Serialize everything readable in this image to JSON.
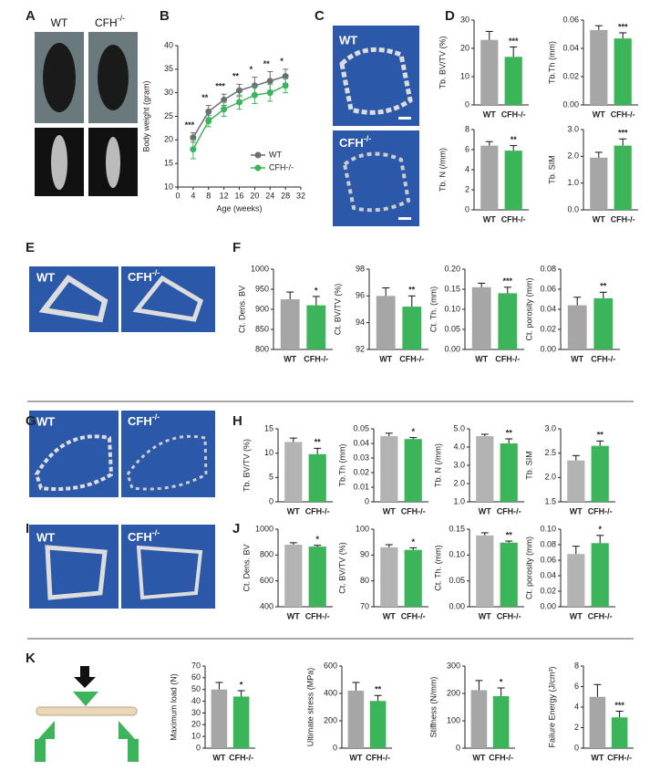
{
  "panels": {
    "letters": [
      "A",
      "B",
      "C",
      "D",
      "E",
      "F",
      "G",
      "H",
      "I",
      "J",
      "K"
    ],
    "wt": "WT",
    "cfh": "CFH",
    "sup": "-/-"
  },
  "chart_data": [
    {
      "type": "line",
      "xlabel": "Age (weeks)",
      "ylabel": "Body weight (gram)",
      "x": [
        4,
        8,
        12,
        16,
        20,
        24,
        28
      ],
      "xlim": [
        0,
        32
      ],
      "xticks": [
        0,
        4,
        8,
        12,
        16,
        20,
        24,
        28,
        32
      ],
      "ylim": [
        10,
        40
      ],
      "yticks": [
        10,
        15,
        20,
        25,
        30,
        35,
        40
      ],
      "legend": "lower right",
      "series": [
        {
          "name": "WT",
          "color": "#6d6e70",
          "values": [
            20.5,
            26,
            28.5,
            30.5,
            31.5,
            32.5,
            33.5
          ],
          "errors": [
            1,
            1.3,
            1.2,
            1.3,
            1.8,
            2,
            1.5
          ]
        },
        {
          "name": "CFH-/-",
          "color": "#3cb55a",
          "values": [
            18,
            24,
            26.5,
            28,
            29.5,
            30,
            31.5
          ],
          "errors": [
            2,
            1.2,
            1.5,
            1.5,
            1.8,
            1.8,
            1.5
          ]
        }
      ],
      "annotations": [
        "***",
        "**",
        "***",
        "**",
        "*",
        "**",
        "*"
      ]
    },
    {
      "type": "bar",
      "ylabel": "Tb. BV/TV (%)",
      "categories": [
        "WT",
        "CFH-/-"
      ],
      "colors": [
        "#a6a6a6",
        "#3cb55a"
      ],
      "values": [
        23,
        17
      ],
      "errors": [
        3,
        3.5
      ],
      "ylim": [
        0,
        30
      ],
      "yticks": [
        0,
        10,
        20,
        30
      ],
      "annotation": "***"
    },
    {
      "type": "bar",
      "ylabel": "Tb.Th (mm)",
      "categories": [
        "WT",
        "CFH-/-"
      ],
      "colors": [
        "#a6a6a6",
        "#3cb55a"
      ],
      "values": [
        0.053,
        0.047
      ],
      "errors": [
        0.003,
        0.004
      ],
      "ylim": [
        0,
        0.06
      ],
      "yticks": [
        {
          "value": 0,
          "label": "0.00"
        },
        0.02,
        0.04,
        0.06
      ],
      "annotation": "***"
    },
    {
      "type": "bar",
      "ylabel": "Tb. N (/mm)",
      "categories": [
        "WT",
        "CFH-/-"
      ],
      "colors": [
        "#a6a6a6",
        "#3cb55a"
      ],
      "values": [
        6.4,
        5.9
      ],
      "errors": [
        0.4,
        0.5
      ],
      "ylim": [
        0,
        8
      ],
      "yticks": [
        0,
        2,
        4,
        6,
        8
      ],
      "annotation": "**"
    },
    {
      "type": "bar",
      "ylabel": "Tb. SIM",
      "categories": [
        "WT",
        "CFH-/-"
      ],
      "colors": [
        "#a6a6a6",
        "#3cb55a"
      ],
      "values": [
        1.95,
        2.4
      ],
      "errors": [
        0.2,
        0.25
      ],
      "ylim": [
        0,
        3
      ],
      "yticks": [
        {
          "value": 0,
          "label": "0.0"
        },
        {
          "value": 1,
          "label": "1.0"
        },
        {
          "value": 2,
          "label": "2.0"
        },
        {
          "value": 3,
          "label": "3.0"
        }
      ],
      "annotation": "***"
    },
    {
      "type": "bar",
      "ylabel": "Ct. Dens. BV",
      "categories": [
        "WT",
        "CFH-/-"
      ],
      "colors": [
        "#a6a6a6",
        "#3cb55a"
      ],
      "values": [
        925,
        910
      ],
      "errors": [
        18,
        22
      ],
      "ylim": [
        800,
        1000
      ],
      "yticks": [
        800,
        850,
        900,
        950,
        1000
      ],
      "annotation": "*"
    },
    {
      "type": "bar",
      "ylabel": "Ct. BV/TV (%)",
      "categories": [
        "WT",
        "CFH-/-"
      ],
      "colors": [
        "#a6a6a6",
        "#3cb55a"
      ],
      "values": [
        96,
        95.2
      ],
      "errors": [
        0.6,
        0.8
      ],
      "ylim": [
        92,
        98
      ],
      "yticks": [
        92,
        94,
        96,
        98
      ],
      "annotation": "**"
    },
    {
      "type": "bar",
      "ylabel": "Ct. Th. (mm)",
      "categories": [
        "WT",
        "CFH-/-"
      ],
      "colors": [
        "#a6a6a6",
        "#3cb55a"
      ],
      "values": [
        0.155,
        0.14
      ],
      "errors": [
        0.01,
        0.015
      ],
      "ylim": [
        0,
        0.2
      ],
      "yticks": [
        {
          "value": 0,
          "label": "0.00"
        },
        0.05,
        {
          "value": 0.1,
          "label": "0.10"
        },
        0.15,
        {
          "value": 0.2,
          "label": "0.20"
        }
      ],
      "annotation": "***"
    },
    {
      "type": "bar",
      "ylabel": "Ct. porosity (mm)",
      "categories": [
        "WT",
        "CFH-/-"
      ],
      "colors": [
        "#a6a6a6",
        "#3cb55a"
      ],
      "values": [
        0.044,
        0.051
      ],
      "errors": [
        0.008,
        0.006
      ],
      "ylim": [
        0,
        0.08
      ],
      "yticks": [
        {
          "value": 0,
          "label": "0.00"
        },
        0.02,
        0.04,
        0.06,
        0.08
      ],
      "annotation": "**"
    },
    {
      "type": "bar",
      "ylabel": "Tb. BV/TV (%)",
      "categories": [
        "WT",
        "CFH-/-"
      ],
      "colors": [
        "#b3b3b3",
        "#3cb55a"
      ],
      "values": [
        12.3,
        9.8
      ],
      "errors": [
        0.8,
        1.2
      ],
      "ylim": [
        0,
        15
      ],
      "yticks": [
        0,
        5,
        10,
        15
      ],
      "annotation": "**"
    },
    {
      "type": "bar",
      "ylabel": "Tb.Th (mm)",
      "categories": [
        "WT",
        "CFH-/-"
      ],
      "colors": [
        "#b3b3b3",
        "#3cb55a"
      ],
      "values": [
        0.045,
        0.043
      ],
      "errors": [
        0.002,
        0.001
      ],
      "ylim": [
        0,
        0.05
      ],
      "yticks": [
        0,
        0.01,
        0.02,
        0.03,
        0.04,
        0.05
      ],
      "annotation": "*"
    },
    {
      "type": "bar",
      "ylabel": "Tb. N (/mm)",
      "categories": [
        "WT",
        "CFH-/-"
      ],
      "colors": [
        "#b3b3b3",
        "#3cb55a"
      ],
      "values": [
        4.6,
        4.2
      ],
      "errors": [
        0.1,
        0.25
      ],
      "ylim": [
        1,
        5
      ],
      "yticks": [
        {
          "value": 1,
          "label": "1.0"
        },
        {
          "value": 2,
          "label": "2.0"
        },
        {
          "value": 3,
          "label": "3.0"
        },
        {
          "value": 4,
          "label": "4.0"
        },
        {
          "value": 5,
          "label": "5.0"
        }
      ],
      "annotation": "**"
    },
    {
      "type": "bar",
      "ylabel": "Tb. SIM",
      "categories": [
        "WT",
        "CFH-/-"
      ],
      "colors": [
        "#b3b3b3",
        "#3cb55a"
      ],
      "values": [
        2.35,
        2.65
      ],
      "errors": [
        0.1,
        0.1
      ],
      "ylim": [
        1.5,
        3
      ],
      "yticks": [
        1.5,
        {
          "value": 2,
          "label": "2.0"
        },
        2.5,
        {
          "value": 3,
          "label": "3.0"
        }
      ],
      "annotation": "**"
    },
    {
      "type": "bar",
      "ylabel": "Ct. Dens. BV",
      "categories": [
        "WT",
        "CFH-/-"
      ],
      "colors": [
        "#b3b3b3",
        "#3cb55a"
      ],
      "values": [
        880,
        865
      ],
      "errors": [
        15,
        10
      ],
      "ylim": [
        400,
        1000
      ],
      "yticks": [
        400,
        600,
        800,
        1000
      ],
      "annotation": "*"
    },
    {
      "type": "bar",
      "ylabel": "Ct. BV/TV (%)",
      "categories": [
        "WT",
        "CFH-/-"
      ],
      "colors": [
        "#b3b3b3",
        "#3cb55a"
      ],
      "values": [
        93,
        92
      ],
      "errors": [
        1,
        0.8
      ],
      "ylim": [
        70,
        100
      ],
      "yticks": [
        70,
        80,
        90,
        100
      ],
      "annotation": "*"
    },
    {
      "type": "bar",
      "ylabel": "Ct. Th. (mm)",
      "categories": [
        "WT",
        "CFH-/-"
      ],
      "colors": [
        "#b3b3b3",
        "#3cb55a"
      ],
      "values": [
        0.138,
        0.124
      ],
      "errors": [
        0.005,
        0.003
      ],
      "ylim": [
        0,
        0.15
      ],
      "yticks": [
        {
          "value": 0,
          "label": "0.00"
        },
        0.05,
        {
          "value": 0.1,
          "label": "0.10"
        },
        0.15
      ],
      "annotation": "**"
    },
    {
      "type": "bar",
      "ylabel": "Ct. porosity (mm)",
      "categories": [
        "WT",
        "CFH-/-"
      ],
      "colors": [
        "#b3b3b3",
        "#3cb55a"
      ],
      "values": [
        0.068,
        0.082
      ],
      "errors": [
        0.01,
        0.01
      ],
      "ylim": [
        0,
        0.1
      ],
      "yticks": [
        {
          "value": 0,
          "label": "0.00"
        },
        0.02,
        0.04,
        0.06,
        0.08,
        {
          "value": 0.1,
          "label": "0.10"
        }
      ],
      "annotation": "*"
    },
    {
      "type": "bar",
      "ylabel": "Maximum load (N)",
      "categories": [
        "WT",
        "CFH-/-"
      ],
      "colors": [
        "#a6a6a6",
        "#3cb55a"
      ],
      "values": [
        50,
        44
      ],
      "errors": [
        6,
        5
      ],
      "ylim": [
        0,
        70
      ],
      "yticks": [
        0,
        10,
        20,
        30,
        40,
        50,
        60,
        70
      ],
      "annotation": "*"
    },
    {
      "type": "bar",
      "ylabel": "Ultimate stress (MPa)",
      "categories": [
        "WT",
        "CFH-/-"
      ],
      "colors": [
        "#a6a6a6",
        "#3cb55a"
      ],
      "values": [
        420,
        345
      ],
      "errors": [
        60,
        40
      ],
      "ylim": [
        0,
        600
      ],
      "yticks": [
        0,
        200,
        400,
        600
      ],
      "annotation": "**"
    },
    {
      "type": "bar",
      "ylabel": "Stiffness (N/mm)",
      "categories": [
        "WT",
        "CFH-/-"
      ],
      "colors": [
        "#a6a6a6",
        "#3cb55a"
      ],
      "values": [
        212,
        190
      ],
      "errors": [
        35,
        30
      ],
      "ylim": [
        0,
        300
      ],
      "yticks": [
        0,
        100,
        200,
        300
      ],
      "annotation": "*"
    },
    {
      "type": "bar",
      "ylabel": "Failure Energy (J/cm³)",
      "categories": [
        "WT",
        "CFH-/-"
      ],
      "colors": [
        "#a6a6a6",
        "#3cb55a"
      ],
      "values": [
        5,
        3
      ],
      "errors": [
        1.2,
        0.6
      ],
      "ylim": [
        0,
        8
      ],
      "yticks": [
        0,
        2,
        4,
        6,
        8
      ],
      "annotation": "***"
    }
  ]
}
